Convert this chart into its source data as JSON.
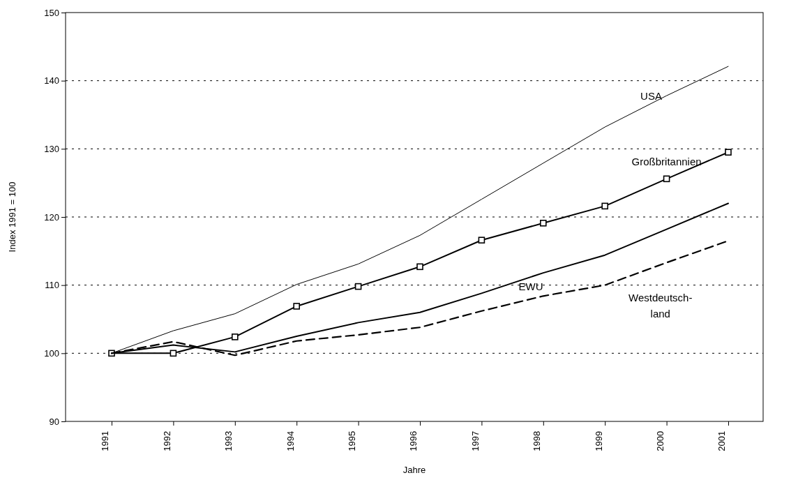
{
  "chart_data": {
    "type": "line",
    "xlabel": "Jahre",
    "ylabel": "Index 1991 = 100",
    "categories": [
      "1991",
      "1992",
      "1993",
      "1994",
      "1995",
      "1996",
      "1997",
      "1998",
      "1999",
      "2000",
      "2001"
    ],
    "ylim": [
      90,
      150
    ],
    "yticks": [
      90,
      100,
      110,
      120,
      130,
      140,
      150
    ],
    "grid": "y",
    "series": [
      {
        "name": "USA",
        "color": "#000000",
        "line_style": "solid",
        "marker": "none",
        "values": [
          100,
          103.3,
          105.8,
          110.1,
          113.1,
          117.3,
          122.6,
          127.9,
          133.2,
          137.8,
          142.1
        ]
      },
      {
        "name": "Großbritannien",
        "color": "#000000",
        "line_style": "solid",
        "marker": "square",
        "values": [
          100,
          100,
          102.4,
          106.9,
          109.8,
          112.7,
          116.6,
          119.1,
          121.6,
          125.6,
          129.5
        ]
      },
      {
        "name": "EWU",
        "color": "#000000",
        "line_style": "solid",
        "marker": "none",
        "values": [
          100,
          101.2,
          100.2,
          102.5,
          104.5,
          106.0,
          108.8,
          111.8,
          114.4,
          118.2,
          122.0
        ]
      },
      {
        "name": "Westdeutsch-land",
        "color": "#000000",
        "line_style": "dashed",
        "marker": "none",
        "values": [
          100,
          101.7,
          99.7,
          101.8,
          102.7,
          103.8,
          106.2,
          108.4,
          110.0,
          113.3,
          116.5
        ]
      }
    ]
  }
}
